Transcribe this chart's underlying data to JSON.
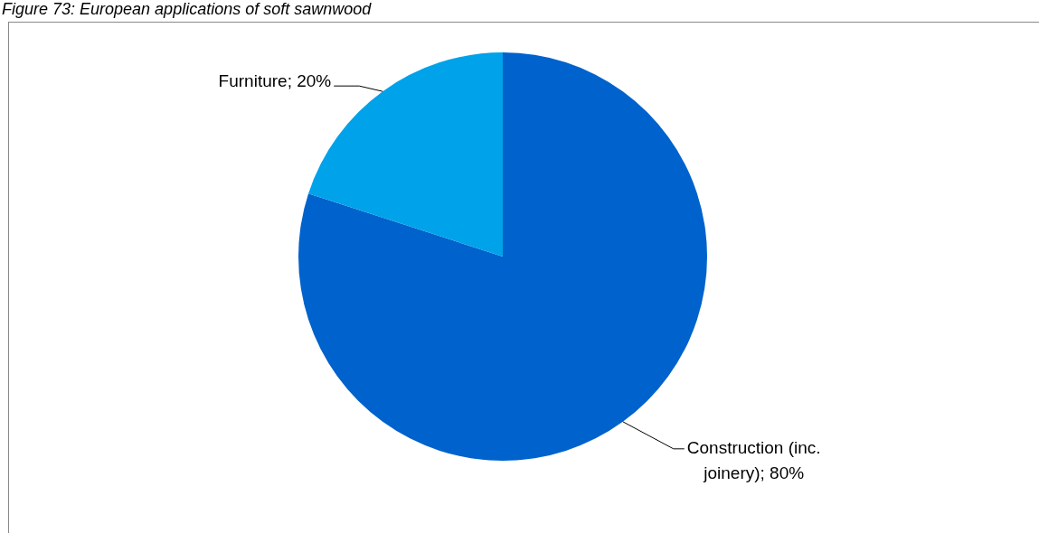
{
  "chart_data": {
    "type": "pie",
    "title": "Figure 73: European applications of soft sawnwood",
    "categories": [
      "Construction (inc. joinery); 80%",
      "Furniture; 20%"
    ],
    "values": [
      80,
      20
    ],
    "colors": [
      "#0062cc",
      "#00a2ea"
    ],
    "legend": false
  }
}
